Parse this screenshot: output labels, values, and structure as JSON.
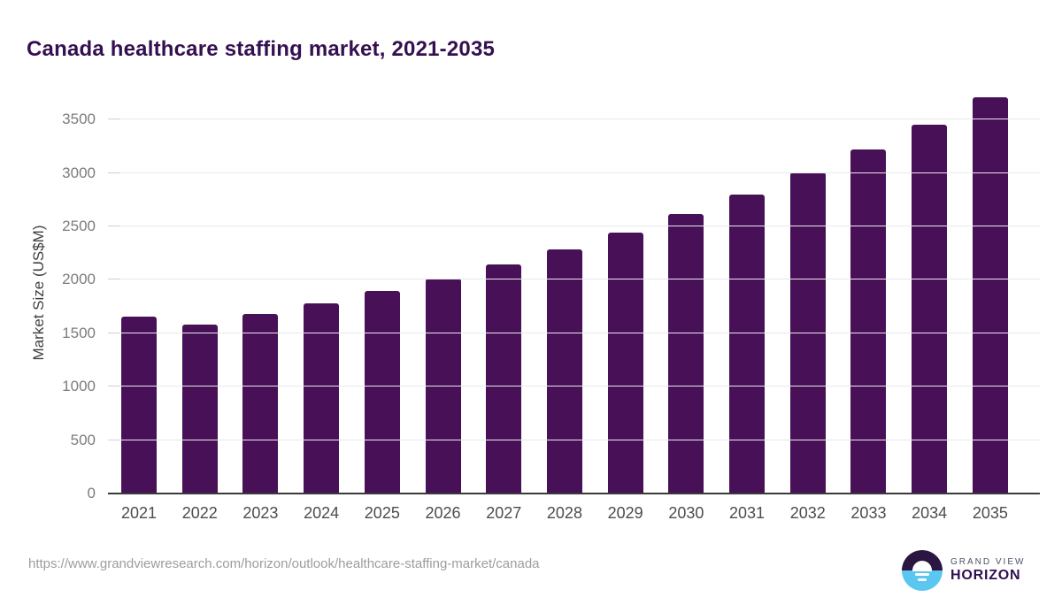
{
  "chart_data": {
    "type": "bar",
    "title": "Canada healthcare staffing market, 2021-2035",
    "xlabel": "",
    "ylabel": "Market Size (US$M)",
    "categories": [
      "2021",
      "2022",
      "2023",
      "2024",
      "2025",
      "2026",
      "2027",
      "2028",
      "2029",
      "2030",
      "2031",
      "2032",
      "2033",
      "2034",
      "2035"
    ],
    "values": [
      1655,
      1580,
      1683,
      1781,
      1896,
      2010,
      2146,
      2287,
      2446,
      2620,
      2800,
      3004,
      3221,
      3452,
      3707
    ],
    "ylim": [
      0,
      3750
    ],
    "yticks": [
      0,
      500,
      1000,
      1500,
      2000,
      2500,
      3000,
      3500
    ],
    "grid": true,
    "legend": "none",
    "bar_color": "#471057"
  },
  "footer": {
    "source_url": "https://www.grandviewresearch.com/horizon/outlook/healthcare-staffing-market/canada",
    "logo": {
      "brand_top": "GRAND VIEW",
      "brand_bottom": "HORIZON"
    }
  },
  "colors": {
    "title": "#341050",
    "bar": "#471057",
    "axis_line": "#3a3a3a",
    "axis_title": "#3f3f3f",
    "gridline": "#e9e9ee",
    "tick_label": "#7c7c7c",
    "x_label": "#4c4c4c",
    "url": "#9d9d9d",
    "logo_dark": "#2a1640",
    "logo_blue": "#5bc6f0",
    "logo_text": "#2f1050",
    "logo_subtext": "#50506a"
  }
}
